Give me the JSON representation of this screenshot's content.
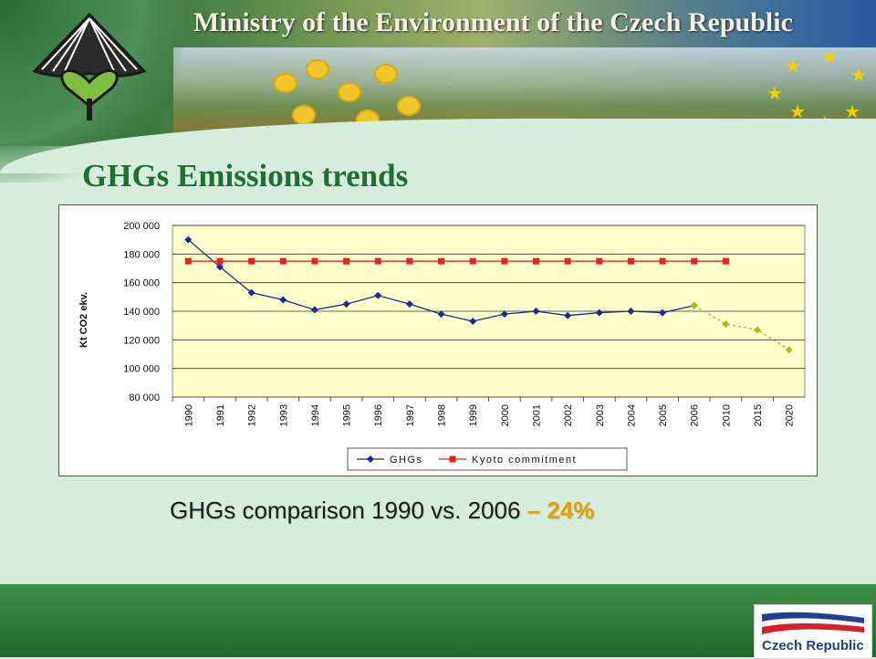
{
  "header": {
    "ministry_title": "Ministry of the Environment of the Czech Republic"
  },
  "slide": {
    "title": "GHGs Emissions trends",
    "comparison_text": "GHGs comparison 1990 vs. 2006",
    "comparison_value": "– 24%"
  },
  "footer": {
    "logo_text": "Czech Republic"
  },
  "colors": {
    "title_green": "#1f6e33",
    "accent_orange": "#e8a000",
    "plot_background": "#ffffcc",
    "ghg_series": "#1a2a8f",
    "kyoto_series": "#e8231a",
    "projection_series": "#9ac31c"
  },
  "chart_data": {
    "type": "line",
    "ylabel": "Kt CO2 ekv.",
    "ylim": [
      80000,
      200000
    ],
    "yticks": [
      "80 000",
      "100 000",
      "120 000",
      "140 000",
      "160 000",
      "180 000",
      "200 000"
    ],
    "ytick_values": [
      80000,
      100000,
      120000,
      140000,
      160000,
      180000,
      200000
    ],
    "categories": [
      "1990",
      "1991",
      "1992",
      "1993",
      "1994",
      "1995",
      "1996",
      "1997",
      "1998",
      "1999",
      "2000",
      "2001",
      "2002",
      "2003",
      "2004",
      "2005",
      "2006",
      "2010",
      "2015",
      "2020"
    ],
    "grid": true,
    "legend_position": "bottom",
    "series": [
      {
        "name": "GHGs",
        "color": "#1a2a8f",
        "marker": "diamond",
        "values": [
          190000,
          171000,
          153000,
          148000,
          141000,
          145000,
          151000,
          145000,
          138000,
          133000,
          138000,
          140000,
          137000,
          139000,
          140000,
          139000,
          144000,
          null,
          null,
          null
        ]
      },
      {
        "name": "Kyoto commitment",
        "color": "#e8231a",
        "marker": "square",
        "values": [
          175000,
          175000,
          175000,
          175000,
          175000,
          175000,
          175000,
          175000,
          175000,
          175000,
          175000,
          175000,
          175000,
          175000,
          175000,
          175000,
          175000,
          175000,
          null,
          null
        ]
      },
      {
        "name": "",
        "color": "#9ac31c",
        "marker": "diamond",
        "dashed": true,
        "values": [
          null,
          null,
          null,
          null,
          null,
          null,
          null,
          null,
          null,
          null,
          null,
          null,
          null,
          null,
          null,
          null,
          144000,
          131000,
          127000,
          113000
        ]
      }
    ]
  }
}
